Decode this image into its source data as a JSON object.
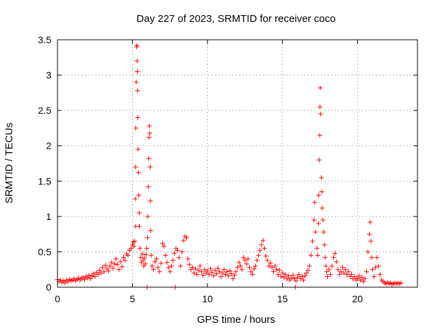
{
  "chart_data": {
    "type": "scatter",
    "title": "Day 227 of 2023, SRMTID for receiver coco",
    "xlabel": "GPS time / hours",
    "ylabel": "SRMTID / TECUs",
    "xlim": [
      0,
      24
    ],
    "ylim": [
      0,
      3.5
    ],
    "xticks": [
      0,
      5,
      10,
      15,
      20
    ],
    "yticks": [
      0,
      0.5,
      1,
      1.5,
      2,
      2.5,
      3,
      3.5
    ],
    "ytick_labels": [
      "0",
      "0.5",
      "1",
      "1.5",
      "2",
      "2.5",
      "3",
      "3.5"
    ],
    "grid": true,
    "marker": "+",
    "color": "#ff0000",
    "series": [
      {
        "name": "SRMTID",
        "points": [
          [
            0.0,
            0.11
          ],
          [
            0.1,
            0.08
          ],
          [
            0.2,
            0.1
          ],
          [
            0.3,
            0.07
          ],
          [
            0.4,
            0.09
          ],
          [
            0.5,
            0.06
          ],
          [
            0.6,
            0.1
          ],
          [
            0.7,
            0.08
          ],
          [
            0.8,
            0.11
          ],
          [
            0.9,
            0.09
          ],
          [
            1.0,
            0.1
          ],
          [
            1.1,
            0.12
          ],
          [
            1.2,
            0.09
          ],
          [
            1.3,
            0.11
          ],
          [
            1.4,
            0.13
          ],
          [
            1.5,
            0.1
          ],
          [
            1.6,
            0.12
          ],
          [
            1.7,
            0.14
          ],
          [
            1.8,
            0.11
          ],
          [
            1.9,
            0.15
          ],
          [
            2.0,
            0.13
          ],
          [
            2.1,
            0.17
          ],
          [
            2.2,
            0.12
          ],
          [
            2.3,
            0.16
          ],
          [
            2.4,
            0.19
          ],
          [
            2.5,
            0.15
          ],
          [
            2.6,
            0.21
          ],
          [
            2.7,
            0.18
          ],
          [
            2.8,
            0.24
          ],
          [
            2.9,
            0.2
          ],
          [
            3.0,
            0.28
          ],
          [
            3.1,
            0.22
          ],
          [
            3.2,
            0.31
          ],
          [
            3.3,
            0.26
          ],
          [
            3.4,
            0.23
          ],
          [
            3.5,
            0.3
          ],
          [
            3.6,
            0.35
          ],
          [
            3.7,
            0.27
          ],
          [
            3.8,
            0.33
          ],
          [
            3.9,
            0.4
          ],
          [
            4.0,
            0.32
          ],
          [
            4.1,
            0.25
          ],
          [
            4.2,
            0.36
          ],
          [
            4.3,
            0.29
          ],
          [
            4.4,
            0.42
          ],
          [
            4.5,
            0.38
          ],
          [
            4.6,
            0.47
          ],
          [
            4.7,
            0.45
          ],
          [
            4.8,
            0.52
          ],
          [
            4.9,
            0.55
          ],
          [
            5.0,
            0.6
          ],
          [
            5.05,
            0.64
          ],
          [
            5.1,
            0.58
          ],
          [
            5.15,
            0.65
          ],
          [
            5.2,
            0.86
          ],
          [
            5.2,
            1.25
          ],
          [
            5.2,
            1.7
          ],
          [
            5.22,
            2.25
          ],
          [
            5.25,
            2.9
          ],
          [
            5.28,
            3.4
          ],
          [
            5.3,
            3.42
          ],
          [
            5.3,
            3.2
          ],
          [
            5.32,
            3.05
          ],
          [
            5.33,
            2.78
          ],
          [
            5.35,
            2.4
          ],
          [
            5.37,
            1.95
          ],
          [
            5.4,
            1.62
          ],
          [
            5.42,
            1.3
          ],
          [
            5.45,
            1.05
          ],
          [
            5.45,
            0.86
          ],
          [
            5.5,
            0.55
          ],
          [
            5.55,
            0.42
          ],
          [
            5.6,
            0.35
          ],
          [
            5.65,
            0.47
          ],
          [
            5.7,
            0.38
          ],
          [
            5.75,
            0.3
          ],
          [
            5.8,
            0.41
          ],
          [
            5.85,
            0.33
          ],
          [
            5.9,
            0.46
          ],
          [
            5.95,
            0.55
          ],
          [
            6.0,
            0.7
          ],
          [
            6.02,
            1.0
          ],
          [
            6.05,
            1.42
          ],
          [
            6.08,
            1.82
          ],
          [
            6.1,
            2.12
          ],
          [
            6.12,
            2.28
          ],
          [
            6.15,
            2.18
          ],
          [
            6.18,
            1.7
          ],
          [
            6.2,
            1.22
          ],
          [
            6.22,
            0.8
          ],
          [
            6.25,
            0.45
          ],
          [
            6.3,
            0.3
          ],
          [
            6.4,
            0.25
          ],
          [
            6.5,
            0.36
          ],
          [
            6.6,
            0.4
          ],
          [
            6.7,
            0.28
          ],
          [
            6.8,
            0.22
          ],
          [
            6.9,
            0.34
          ],
          [
            7.0,
            0.62
          ],
          [
            7.1,
            0.58
          ],
          [
            7.2,
            0.45
          ],
          [
            7.3,
            0.35
          ],
          [
            7.4,
            0.28
          ],
          [
            7.5,
            0.22
          ],
          [
            7.6,
            0.3
          ],
          [
            7.7,
            0.38
          ],
          [
            7.8,
            0.48
          ],
          [
            7.9,
            0.55
          ],
          [
            8.0,
            0.52
          ],
          [
            8.1,
            0.42
          ],
          [
            8.2,
            0.3
          ],
          [
            8.3,
            0.5
          ],
          [
            8.4,
            0.66
          ],
          [
            8.5,
            0.72
          ],
          [
            8.6,
            0.7
          ],
          [
            8.7,
            0.4
          ],
          [
            8.8,
            0.32
          ],
          [
            8.9,
            0.25
          ],
          [
            9.0,
            0.28
          ],
          [
            9.1,
            0.2
          ],
          [
            9.2,
            0.26
          ],
          [
            9.3,
            0.18
          ],
          [
            9.4,
            0.24
          ],
          [
            9.5,
            0.3
          ],
          [
            9.6,
            0.22
          ],
          [
            9.7,
            0.17
          ],
          [
            9.8,
            0.25
          ],
          [
            9.9,
            0.2
          ],
          [
            10.0,
            0.23
          ],
          [
            10.1,
            0.18
          ],
          [
            10.2,
            0.26
          ],
          [
            10.3,
            0.21
          ],
          [
            10.4,
            0.16
          ],
          [
            10.5,
            0.24
          ],
          [
            10.6,
            0.19
          ],
          [
            10.7,
            0.27
          ],
          [
            10.8,
            0.22
          ],
          [
            10.9,
            0.15
          ],
          [
            11.0,
            0.2
          ],
          [
            11.1,
            0.25
          ],
          [
            11.2,
            0.18
          ],
          [
            11.3,
            0.22
          ],
          [
            11.4,
            0.16
          ],
          [
            11.5,
            0.23
          ],
          [
            11.6,
            0.19
          ],
          [
            11.7,
            0.12
          ],
          [
            11.8,
            0.17
          ],
          [
            11.9,
            0.22
          ],
          [
            12.0,
            0.28
          ],
          [
            12.1,
            0.35
          ],
          [
            12.2,
            0.3
          ],
          [
            12.3,
            0.25
          ],
          [
            12.4,
            0.42
          ],
          [
            12.5,
            0.38
          ],
          [
            12.6,
            0.33
          ],
          [
            12.7,
            0.4
          ],
          [
            12.8,
            0.28
          ],
          [
            12.9,
            0.22
          ],
          [
            13.0,
            0.18
          ],
          [
            13.1,
            0.26
          ],
          [
            13.2,
            0.3
          ],
          [
            13.3,
            0.38
          ],
          [
            13.4,
            0.45
          ],
          [
            13.5,
            0.52
          ],
          [
            13.6,
            0.6
          ],
          [
            13.7,
            0.66
          ],
          [
            13.8,
            0.55
          ],
          [
            13.9,
            0.44
          ],
          [
            14.0,
            0.38
          ],
          [
            14.1,
            0.3
          ],
          [
            14.2,
            0.34
          ],
          [
            14.3,
            0.28
          ],
          [
            14.4,
            0.22
          ],
          [
            14.5,
            0.3
          ],
          [
            14.6,
            0.25
          ],
          [
            14.7,
            0.18
          ],
          [
            14.8,
            0.24
          ],
          [
            14.9,
            0.15
          ],
          [
            15.0,
            0.2
          ],
          [
            15.1,
            0.14
          ],
          [
            15.2,
            0.18
          ],
          [
            15.3,
            0.12
          ],
          [
            15.4,
            0.16
          ],
          [
            15.5,
            0.1
          ],
          [
            15.6,
            0.13
          ],
          [
            15.7,
            0.17
          ],
          [
            15.8,
            0.12
          ],
          [
            15.9,
            0.09
          ],
          [
            16.0,
            0.14
          ],
          [
            16.1,
            0.18
          ],
          [
            16.2,
            0.12
          ],
          [
            16.3,
            0.15
          ],
          [
            16.4,
            0.1
          ],
          [
            16.5,
            0.16
          ],
          [
            16.6,
            0.2
          ],
          [
            16.7,
            0.24
          ],
          [
            16.8,
            0.3
          ],
          [
            16.9,
            0.45
          ],
          [
            17.0,
            0.65
          ],
          [
            17.1,
            0.95
          ],
          [
            17.15,
            1.2
          ],
          [
            17.2,
            0.78
          ],
          [
            17.3,
            0.55
          ],
          [
            17.35,
            0.45
          ],
          [
            17.4,
            0.9
          ],
          [
            17.42,
            1.3
          ],
          [
            17.45,
            1.8
          ],
          [
            17.48,
            2.15
          ],
          [
            17.5,
            2.55
          ],
          [
            17.52,
            2.82
          ],
          [
            17.55,
            2.45
          ],
          [
            17.6,
            1.55
          ],
          [
            17.62,
            1.35
          ],
          [
            17.65,
            1.12
          ],
          [
            17.7,
            0.95
          ],
          [
            17.75,
            0.78
          ],
          [
            17.8,
            0.6
          ],
          [
            17.85,
            0.42
          ],
          [
            17.9,
            0.3
          ],
          [
            17.95,
            0.22
          ],
          [
            18.0,
            0.15
          ],
          [
            18.1,
            0.25
          ],
          [
            18.2,
            0.18
          ],
          [
            18.3,
            0.3
          ],
          [
            18.4,
            0.42
          ],
          [
            18.5,
            0.48
          ],
          [
            18.6,
            0.36
          ],
          [
            18.7,
            0.25
          ],
          [
            18.8,
            0.18
          ],
          [
            18.9,
            0.22
          ],
          [
            19.0,
            0.28
          ],
          [
            19.1,
            0.2
          ],
          [
            19.2,
            0.25
          ],
          [
            19.3,
            0.18
          ],
          [
            19.4,
            0.22
          ],
          [
            19.5,
            0.15
          ],
          [
            19.6,
            0.18
          ],
          [
            19.7,
            0.12
          ],
          [
            19.8,
            0.15
          ],
          [
            19.9,
            0.1
          ],
          [
            20.0,
            0.12
          ],
          [
            20.1,
            0.16
          ],
          [
            20.2,
            0.1
          ],
          [
            20.3,
            0.14
          ],
          [
            20.4,
            0.08
          ],
          [
            20.5,
            0.12
          ],
          [
            20.6,
            0.22
          ],
          [
            20.7,
            0.5
          ],
          [
            20.8,
            0.75
          ],
          [
            20.85,
            0.92
          ],
          [
            20.9,
            0.65
          ],
          [
            20.95,
            0.42
          ],
          [
            21.0,
            0.25
          ],
          [
            21.1,
            0.15
          ],
          [
            21.2,
            0.28
          ],
          [
            21.3,
            0.42
          ],
          [
            21.4,
            0.3
          ],
          [
            21.5,
            0.18
          ],
          [
            21.6,
            0.1
          ],
          [
            21.7,
            0.08
          ],
          [
            21.8,
            0.06
          ],
          [
            21.9,
            0.05
          ],
          [
            22.0,
            0.07
          ],
          [
            22.1,
            0.05
          ],
          [
            22.2,
            0.06
          ],
          [
            22.3,
            0.04
          ],
          [
            22.4,
            0.05
          ],
          [
            22.5,
            0.06
          ],
          [
            22.6,
            0.05
          ],
          [
            22.7,
            0.06
          ],
          [
            22.8,
            0.05
          ],
          [
            22.9,
            0.06
          ],
          [
            5.98,
            0.0
          ],
          [
            7.85,
            0.0
          ],
          [
            15.85,
            0.0
          ]
        ]
      }
    ]
  }
}
